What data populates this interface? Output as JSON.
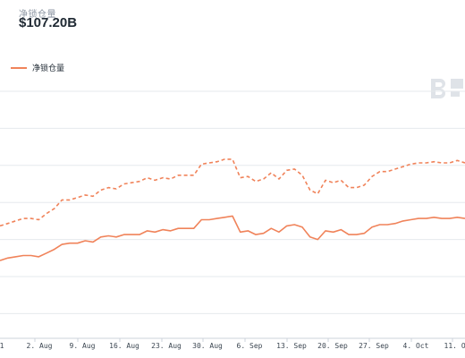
{
  "header": {
    "label": "净锁仓量",
    "value": "$107.20B"
  },
  "colors": {
    "series": "#f0835a",
    "grid": "#e6e9ed",
    "watermark": "#dfe3e8"
  },
  "watermark": {
    "icon": "logo-icon"
  },
  "chart_data": {
    "type": "line",
    "title": "",
    "xlabel": "",
    "ylabel": "",
    "legend_position": "top-left",
    "grid": true,
    "ylim": [
      0,
      10
    ],
    "x_ticks": [
      "1",
      "2. Aug",
      "9. Aug",
      "16. Aug",
      "23. Aug",
      "30. Aug",
      "6. Sep",
      "13. Sep",
      "20. Sep",
      "27. Sep",
      "4. Oct",
      "11. Oc"
    ],
    "series": [
      {
        "name": "净锁仓量",
        "style": "solid",
        "x": [
          0,
          2,
          4,
          6,
          8,
          10,
          12,
          14,
          16,
          18,
          20,
          22,
          24,
          26,
          28,
          30,
          32,
          34,
          36,
          38,
          40,
          42,
          44,
          46,
          48,
          50,
          52,
          54,
          56,
          58,
          60,
          62,
          64,
          66,
          68,
          70,
          72,
          74,
          76,
          78,
          80,
          82,
          84,
          86,
          88,
          90,
          92,
          94,
          96,
          98,
          100,
          102,
          104,
          106,
          108,
          110,
          112,
          114,
          116,
          118,
          120
        ],
        "values": [
          3.15,
          3.25,
          3.3,
          3.35,
          3.35,
          3.3,
          3.45,
          3.6,
          3.8,
          3.85,
          3.85,
          3.95,
          3.9,
          4.1,
          4.15,
          4.1,
          4.2,
          4.2,
          4.2,
          4.35,
          4.3,
          4.4,
          4.35,
          4.45,
          4.45,
          4.45,
          4.8,
          4.8,
          4.85,
          4.9,
          4.95,
          4.3,
          4.35,
          4.2,
          4.25,
          4.45,
          4.3,
          4.55,
          4.6,
          4.5,
          4.1,
          4.0,
          4.35,
          4.3,
          4.4,
          4.2,
          4.2,
          4.25,
          4.5,
          4.6,
          4.6,
          4.65,
          4.75,
          4.8,
          4.85,
          4.85,
          4.9,
          4.85,
          4.85,
          4.9,
          4.85
        ]
      },
      {
        "name": "",
        "style": "dashed",
        "x": [
          0,
          2,
          4,
          6,
          8,
          10,
          12,
          14,
          16,
          18,
          20,
          22,
          24,
          26,
          28,
          30,
          32,
          34,
          36,
          38,
          40,
          42,
          44,
          46,
          48,
          50,
          52,
          54,
          56,
          58,
          60,
          62,
          64,
          66,
          68,
          70,
          72,
          74,
          76,
          78,
          80,
          82,
          84,
          86,
          88,
          90,
          92,
          94,
          96,
          98,
          100,
          102,
          104,
          106,
          108,
          110,
          112,
          114,
          116,
          118,
          120
        ],
        "values": [
          4.55,
          4.65,
          4.75,
          4.85,
          4.85,
          4.8,
          5.05,
          5.25,
          5.6,
          5.6,
          5.7,
          5.8,
          5.75,
          6.0,
          6.1,
          6.05,
          6.25,
          6.3,
          6.35,
          6.5,
          6.4,
          6.5,
          6.45,
          6.6,
          6.6,
          6.6,
          7.05,
          7.1,
          7.15,
          7.25,
          7.25,
          6.5,
          6.55,
          6.35,
          6.45,
          6.7,
          6.45,
          6.8,
          6.85,
          6.6,
          6.0,
          5.85,
          6.4,
          6.3,
          6.4,
          6.1,
          6.1,
          6.2,
          6.55,
          6.75,
          6.75,
          6.85,
          6.95,
          7.05,
          7.1,
          7.1,
          7.15,
          7.1,
          7.1,
          7.2,
          7.1
        ]
      }
    ]
  }
}
